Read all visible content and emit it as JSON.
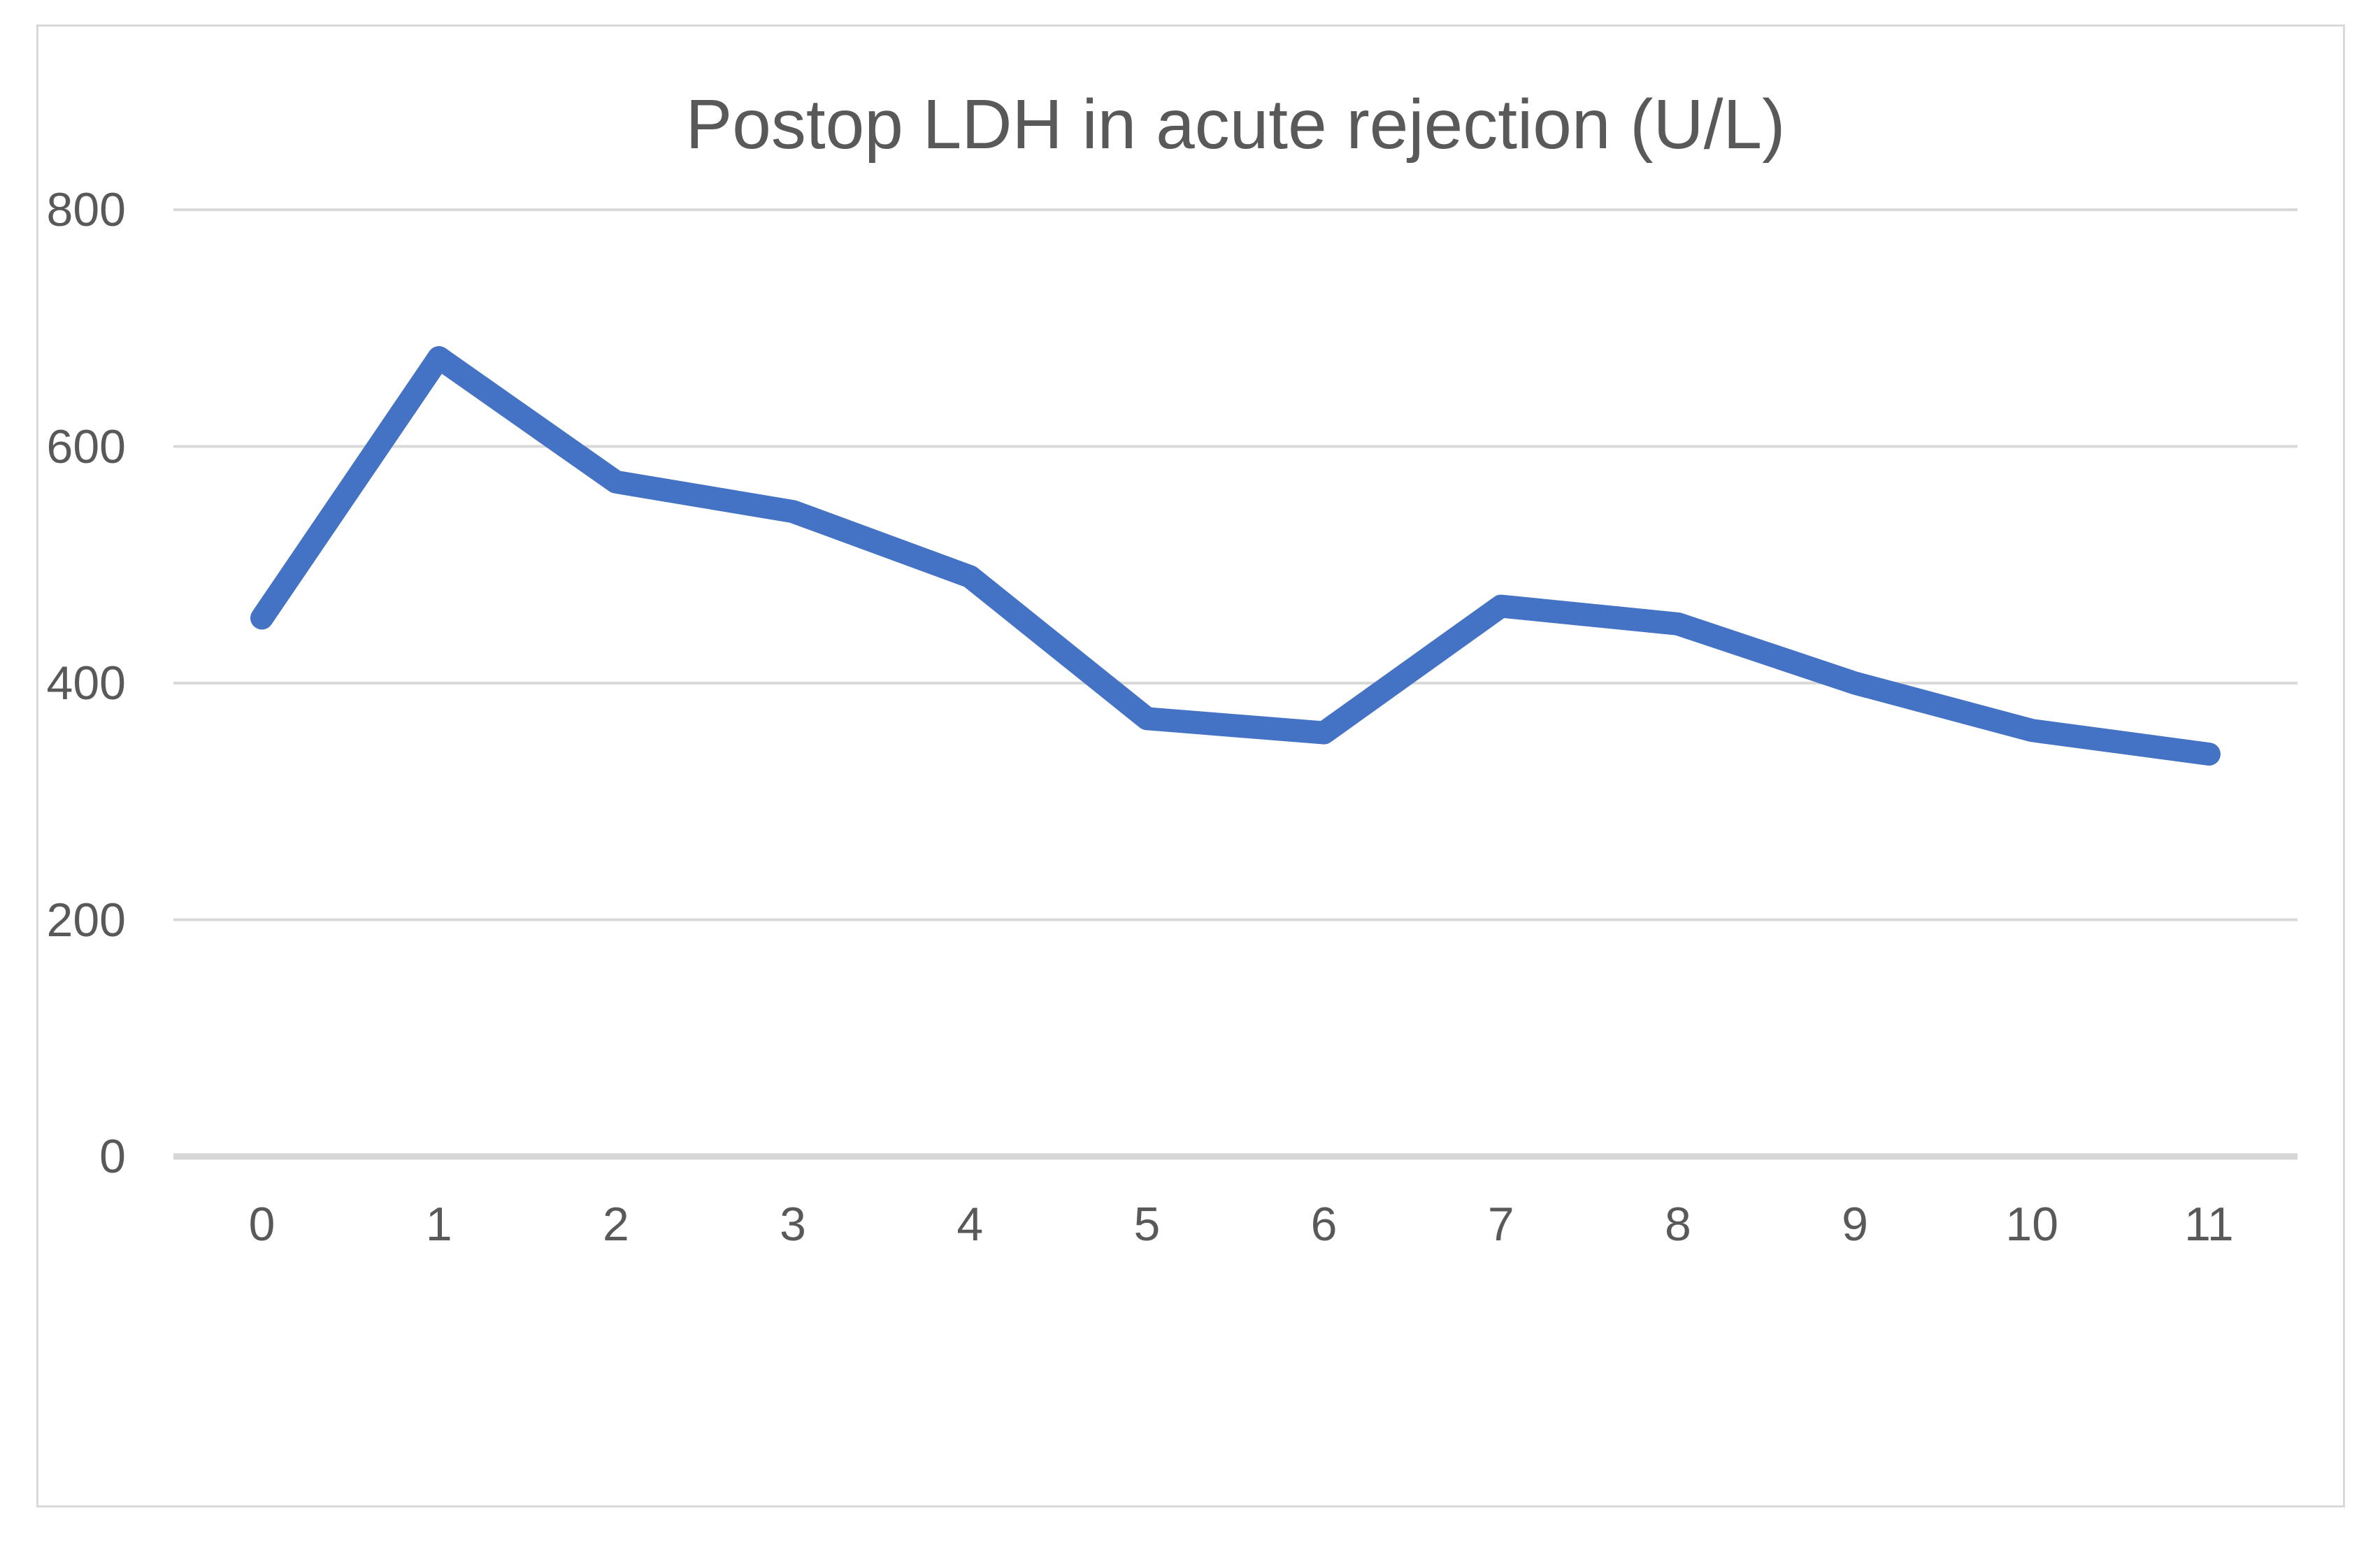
{
  "chart_data": {
    "type": "line",
    "title": "Postop LDH in acute rejection (U/L)",
    "categories": [
      "0",
      "1",
      "2",
      "3",
      "4",
      "5",
      "6",
      "7",
      "8",
      "9",
      "10",
      "11"
    ],
    "series": [
      {
        "name": "Postop LDH",
        "values": [
          455,
          675,
          570,
          545,
          490,
          370,
          358,
          465,
          450,
          400,
          360,
          340
        ]
      }
    ],
    "xlabel": "",
    "ylabel": "",
    "ylim": [
      0,
      800
    ],
    "yticks": [
      0,
      200,
      400,
      600,
      800
    ],
    "ytick_labels": [
      "0",
      "200",
      "400",
      "600",
      "800"
    ],
    "grid": "horizontal",
    "legend": "none",
    "colors": {
      "line": "#4472C4",
      "gridline": "#d9d9d9",
      "axis_line": "#d6d6d6",
      "text": "#595959",
      "frame": "#d9d9d9",
      "background": "#ffffff"
    }
  }
}
